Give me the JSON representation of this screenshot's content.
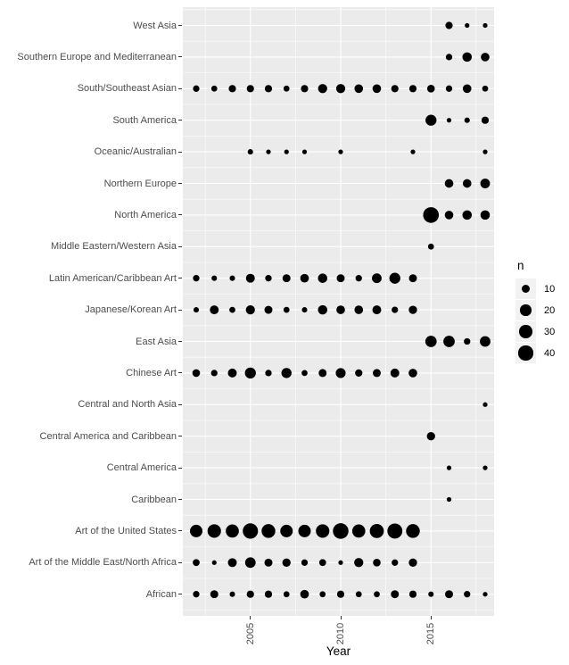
{
  "figure": {
    "background": "#ffffff",
    "panel_bg": "#ebebeb",
    "grid_color": "#ffffff",
    "dot_color": "#000000",
    "axis_text_color": "#4d4d4d",
    "tick_color": "#333333",
    "legend_key_bg": "#f2f2f2"
  },
  "chart_data": {
    "type": "scatter",
    "subtype": "bubble-dot-plot",
    "title": "",
    "xlabel": "Year",
    "ylabel": "",
    "grid": true,
    "x_range": [
      2002,
      2018
    ],
    "x_ticks": [
      2005,
      2010,
      2015
    ],
    "x_minor_ticks": [
      2002.5,
      2007.5,
      2012.5,
      2017.5
    ],
    "legend": {
      "title": "n",
      "sizes": [
        10,
        20,
        30,
        40
      ],
      "position": "right"
    },
    "categories": [
      "West Asia",
      "Southern Europe and Mediterranean",
      "South/Southeast Asian",
      "South America",
      "Oceanic/Australian",
      "Northern Europe",
      "North America",
      "Middle Eastern/Western Asia",
      "Latin American/Caribbean Art",
      "Japanese/Korean Art",
      "East Asia",
      "Chinese Art",
      "Central and North Asia",
      "Central America and Caribbean",
      "Central America",
      "Caribbean",
      "Art of the United States",
      "Art of the Middle East/North Africa",
      "African"
    ],
    "series": [
      {
        "category": "West Asia",
        "points": [
          {
            "year": 2016,
            "n": 6
          },
          {
            "year": 2017,
            "n": 1
          },
          {
            "year": 2018,
            "n": 1
          }
        ]
      },
      {
        "category": "Southern Europe and Mediterranean",
        "points": [
          {
            "year": 2016,
            "n": 4
          },
          {
            "year": 2017,
            "n": 13
          },
          {
            "year": 2018,
            "n": 10
          }
        ]
      },
      {
        "category": "South/Southeast Asian",
        "points": [
          {
            "year": 2002,
            "n": 4
          },
          {
            "year": 2003,
            "n": 3
          },
          {
            "year": 2004,
            "n": 6
          },
          {
            "year": 2005,
            "n": 6
          },
          {
            "year": 2006,
            "n": 6
          },
          {
            "year": 2007,
            "n": 3
          },
          {
            "year": 2008,
            "n": 6
          },
          {
            "year": 2009,
            "n": 12
          },
          {
            "year": 2010,
            "n": 12
          },
          {
            "year": 2011,
            "n": 10
          },
          {
            "year": 2012,
            "n": 10
          },
          {
            "year": 2013,
            "n": 6
          },
          {
            "year": 2014,
            "n": 6
          },
          {
            "year": 2015,
            "n": 7
          },
          {
            "year": 2016,
            "n": 4
          },
          {
            "year": 2017,
            "n": 10
          },
          {
            "year": 2018,
            "n": 3
          }
        ]
      },
      {
        "category": "South America",
        "points": [
          {
            "year": 2015,
            "n": 20
          },
          {
            "year": 2016,
            "n": 1
          },
          {
            "year": 2017,
            "n": 2
          },
          {
            "year": 2018,
            "n": 6
          }
        ]
      },
      {
        "category": "Oceanic/Australian",
        "points": [
          {
            "year": 2005,
            "n": 2
          },
          {
            "year": 2006,
            "n": 1
          },
          {
            "year": 2007,
            "n": 1
          },
          {
            "year": 2008,
            "n": 1
          },
          {
            "year": 2010,
            "n": 1
          },
          {
            "year": 2014,
            "n": 1
          },
          {
            "year": 2018,
            "n": 1
          }
        ]
      },
      {
        "category": "Northern Europe",
        "points": [
          {
            "year": 2016,
            "n": 10
          },
          {
            "year": 2017,
            "n": 10
          },
          {
            "year": 2018,
            "n": 14
          }
        ]
      },
      {
        "category": "North America",
        "points": [
          {
            "year": 2015,
            "n": 50
          },
          {
            "year": 2016,
            "n": 10
          },
          {
            "year": 2017,
            "n": 13
          },
          {
            "year": 2018,
            "n": 13
          }
        ]
      },
      {
        "category": "Middle Eastern/Western Asia",
        "points": [
          {
            "year": 2015,
            "n": 3
          }
        ]
      },
      {
        "category": "Latin American/Caribbean Art",
        "points": [
          {
            "year": 2002,
            "n": 4
          },
          {
            "year": 2003,
            "n": 2
          },
          {
            "year": 2004,
            "n": 2
          },
          {
            "year": 2005,
            "n": 11
          },
          {
            "year": 2006,
            "n": 4
          },
          {
            "year": 2007,
            "n": 8
          },
          {
            "year": 2008,
            "n": 10
          },
          {
            "year": 2009,
            "n": 13
          },
          {
            "year": 2010,
            "n": 8
          },
          {
            "year": 2011,
            "n": 4
          },
          {
            "year": 2012,
            "n": 14
          },
          {
            "year": 2013,
            "n": 20
          },
          {
            "year": 2014,
            "n": 8
          }
        ]
      },
      {
        "category": "Japanese/Korean Art",
        "points": [
          {
            "year": 2002,
            "n": 2
          },
          {
            "year": 2003,
            "n": 11
          },
          {
            "year": 2004,
            "n": 3
          },
          {
            "year": 2005,
            "n": 12
          },
          {
            "year": 2006,
            "n": 8
          },
          {
            "year": 2007,
            "n": 3
          },
          {
            "year": 2008,
            "n": 2
          },
          {
            "year": 2009,
            "n": 13
          },
          {
            "year": 2010,
            "n": 10
          },
          {
            "year": 2011,
            "n": 10
          },
          {
            "year": 2012,
            "n": 11
          },
          {
            "year": 2013,
            "n": 4
          },
          {
            "year": 2014,
            "n": 9
          }
        ]
      },
      {
        "category": "East Asia",
        "points": [
          {
            "year": 2015,
            "n": 22
          },
          {
            "year": 2016,
            "n": 22
          },
          {
            "year": 2017,
            "n": 4
          },
          {
            "year": 2018,
            "n": 18
          }
        ]
      },
      {
        "category": "Chinese Art",
        "points": [
          {
            "year": 2002,
            "n": 7
          },
          {
            "year": 2003,
            "n": 4
          },
          {
            "year": 2004,
            "n": 11
          },
          {
            "year": 2005,
            "n": 20
          },
          {
            "year": 2006,
            "n": 4
          },
          {
            "year": 2007,
            "n": 16
          },
          {
            "year": 2008,
            "n": 3
          },
          {
            "year": 2009,
            "n": 8
          },
          {
            "year": 2010,
            "n": 15
          },
          {
            "year": 2011,
            "n": 6
          },
          {
            "year": 2012,
            "n": 8
          },
          {
            "year": 2013,
            "n": 11
          },
          {
            "year": 2014,
            "n": 10
          }
        ]
      },
      {
        "category": "Central and North Asia",
        "points": [
          {
            "year": 2018,
            "n": 1
          }
        ]
      },
      {
        "category": "Central America and Caribbean",
        "points": [
          {
            "year": 2015,
            "n": 9
          }
        ]
      },
      {
        "category": "Central America",
        "points": [
          {
            "year": 2016,
            "n": 1
          },
          {
            "year": 2018,
            "n": 1
          }
        ]
      },
      {
        "category": "Caribbean",
        "points": [
          {
            "year": 2016,
            "n": 1
          }
        ]
      },
      {
        "category": "Art of the United States",
        "points": [
          {
            "year": 2002,
            "n": 28
          },
          {
            "year": 2003,
            "n": 34
          },
          {
            "year": 2004,
            "n": 32
          },
          {
            "year": 2005,
            "n": 47
          },
          {
            "year": 2006,
            "n": 36
          },
          {
            "year": 2007,
            "n": 28
          },
          {
            "year": 2008,
            "n": 28
          },
          {
            "year": 2009,
            "n": 34
          },
          {
            "year": 2010,
            "n": 49
          },
          {
            "year": 2011,
            "n": 32
          },
          {
            "year": 2012,
            "n": 38
          },
          {
            "year": 2013,
            "n": 45
          },
          {
            "year": 2014,
            "n": 36
          }
        ]
      },
      {
        "category": "Art of the Middle East/North Africa",
        "points": [
          {
            "year": 2002,
            "n": 5
          },
          {
            "year": 2003,
            "n": 1
          },
          {
            "year": 2004,
            "n": 11
          },
          {
            "year": 2005,
            "n": 18
          },
          {
            "year": 2006,
            "n": 8
          },
          {
            "year": 2007,
            "n": 9
          },
          {
            "year": 2008,
            "n": 4
          },
          {
            "year": 2009,
            "n": 5
          },
          {
            "year": 2010,
            "n": 1
          },
          {
            "year": 2011,
            "n": 12
          },
          {
            "year": 2012,
            "n": 7
          },
          {
            "year": 2013,
            "n": 4
          },
          {
            "year": 2014,
            "n": 9
          }
        ]
      },
      {
        "category": "African",
        "points": [
          {
            "year": 2002,
            "n": 4
          },
          {
            "year": 2003,
            "n": 8
          },
          {
            "year": 2004,
            "n": 2
          },
          {
            "year": 2005,
            "n": 6
          },
          {
            "year": 2006,
            "n": 6
          },
          {
            "year": 2007,
            "n": 3
          },
          {
            "year": 2008,
            "n": 10
          },
          {
            "year": 2009,
            "n": 3
          },
          {
            "year": 2010,
            "n": 6
          },
          {
            "year": 2011,
            "n": 3
          },
          {
            "year": 2012,
            "n": 3
          },
          {
            "year": 2013,
            "n": 8
          },
          {
            "year": 2014,
            "n": 6
          },
          {
            "year": 2015,
            "n": 2
          },
          {
            "year": 2016,
            "n": 8
          },
          {
            "year": 2017,
            "n": 4
          },
          {
            "year": 2018,
            "n": 1
          }
        ]
      }
    ]
  }
}
